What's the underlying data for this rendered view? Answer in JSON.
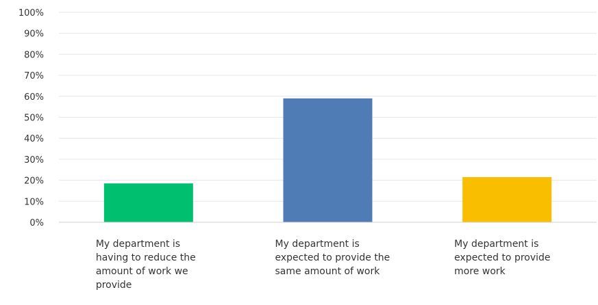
{
  "chart_data": {
    "type": "bar",
    "categories": [
      "My department is having to reduce the amount of work we provide",
      "My department is expected to provide the same amount of work",
      "My department is expected to provide more work"
    ],
    "values": [
      18.5,
      59,
      21.5
    ],
    "colors": [
      "#00bf6f",
      "#507cb6",
      "#f9be00"
    ],
    "ylim": [
      0,
      100
    ],
    "yticks": [
      0,
      10,
      20,
      30,
      40,
      50,
      60,
      70,
      80,
      90,
      100
    ],
    "ytick_format": "%",
    "grid": true,
    "title": "",
    "xlabel": "",
    "ylabel": ""
  }
}
